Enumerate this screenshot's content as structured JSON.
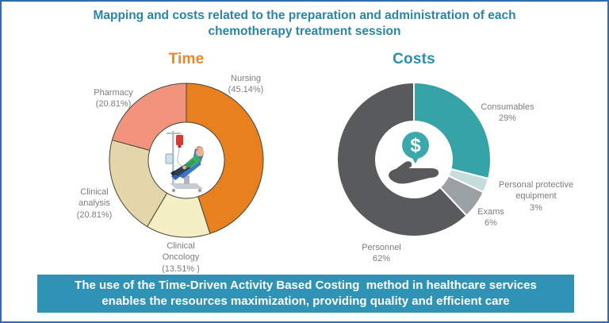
{
  "title": {
    "lines": [
      "Mapping and costs related to the preparation and administration of each",
      "chemotherapy treatment session"
    ],
    "color": "#2a86a8"
  },
  "banner": {
    "lines": [
      "The use of the Time-Driven Activity Based Costing  method in healthcare services",
      "enables the resources maximization, providing quality and efficient care"
    ],
    "bg_color": "#2e93b5",
    "text_color": "#ffffff"
  },
  "border_color": "#2f6cab",
  "label_color": "#7b7e81",
  "icons": {
    "time_center": "patient-receiving-chemotherapy-illustration",
    "costs_center": "hand-holding-dollar-coin-icon"
  },
  "chart_data": [
    {
      "type": "pie",
      "donut": true,
      "title": "Time",
      "title_color": "#e8872e",
      "start_angle": "12-oclock",
      "direction": "clockwise",
      "outline_color": "#4a4336",
      "center_illustration": "patient-in-chemo-chair-with-iv-drip",
      "slices": [
        {
          "label": "Nursing",
          "value": 45.14,
          "color": "#e8801f",
          "display": "Nursing\n(45.14%)"
        },
        {
          "label": "Clinical Oncology",
          "value": 13.51,
          "color": "#f5efc5",
          "display": "Clinical\nOncology\n(13.51% )"
        },
        {
          "label": "Clinical analysis",
          "value": 20.81,
          "color": "#e2d6aa",
          "display": "Clinical\nanalysis\n(20.81%)"
        },
        {
          "label": "Pharmacy",
          "value": 20.81,
          "color": "#f2937e",
          "display": "Pharmacy\n(20.81%)"
        }
      ]
    },
    {
      "type": "pie",
      "donut": true,
      "title": "Costs",
      "title_color": "#2a8fae",
      "start_angle": "12-oclock",
      "direction": "clockwise",
      "outline_color": "#ffffff",
      "center_icon": "hand-holding-dollar-coin",
      "slices": [
        {
          "label": "Consumables",
          "value": 29,
          "color": "#35a3a8",
          "display": "Consumables\n29%"
        },
        {
          "label": "Personal protective equipment",
          "value": 3,
          "color": "#c5dedd",
          "display": "Personal protective\nequipment\n3%"
        },
        {
          "label": "Exams",
          "value": 6,
          "color": "#9aa0a3",
          "display": "Exams\n6%"
        },
        {
          "label": "Personnel",
          "value": 62,
          "color": "#595a5c",
          "display": "Personnel\n62%"
        }
      ]
    }
  ]
}
